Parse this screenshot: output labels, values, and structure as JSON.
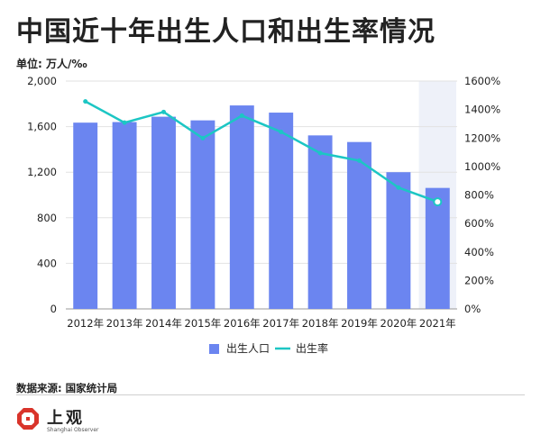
{
  "title": "中国近十年出生人口和出生率情况",
  "unit": "单位: 万人/‰",
  "source": "数据来源: 国家统计局",
  "logo": {
    "text": "上观",
    "subtext": "Shanghai Observer"
  },
  "chart_data": {
    "type": "bar",
    "categories": [
      "2012年",
      "2013年",
      "2014年",
      "2015年",
      "2016年",
      "2017年",
      "2018年",
      "2019年",
      "2020年",
      "2021年"
    ],
    "series": [
      {
        "name": "出生人口",
        "type": "bar",
        "axis": "left",
        "color": "#6b85f0",
        "values": [
          1635,
          1640,
          1687,
          1655,
          1786,
          1723,
          1523,
          1465,
          1200,
          1062
        ]
      },
      {
        "name": "出生率",
        "type": "line",
        "axis": "right",
        "color": "#1cc6c4",
        "values": [
          1457,
          1308,
          1383,
          1199,
          1357,
          1243,
          1094,
          1041,
          852,
          752
        ]
      }
    ],
    "y_left": {
      "min": 0,
      "max": 2000,
      "ticks": [
        "0",
        "400",
        "800",
        "1,200",
        "1,600",
        "2,000"
      ]
    },
    "y_right": {
      "min": 0,
      "max": 1600,
      "ticks": [
        "0%",
        "200%",
        "400%",
        "600%",
        "800%",
        "1000%",
        "1200%",
        "1400%",
        "1600%"
      ]
    },
    "highlight_category": "2021年",
    "legend": [
      "出生人口",
      "出生率"
    ],
    "legend_position": "bottom",
    "grid": true
  }
}
